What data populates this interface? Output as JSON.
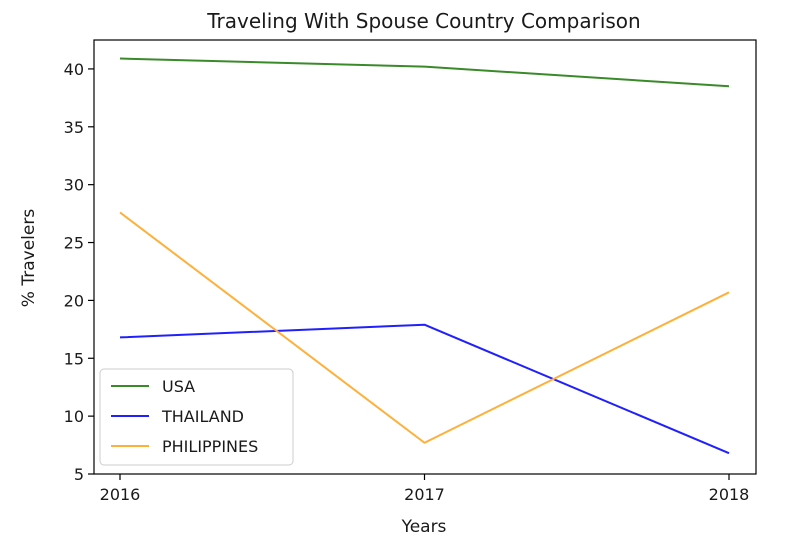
{
  "chart_data": {
    "type": "line",
    "title": "Traveling With Spouse Country Comparison",
    "xlabel": "Years",
    "ylabel": "% Travelers",
    "x": [
      "2016",
      "2017",
      "2018"
    ],
    "ylim": [
      5,
      42.5
    ],
    "yticks": [
      5,
      10,
      15,
      20,
      25,
      30,
      35,
      40
    ],
    "legend_position": "lower-left",
    "grid": false,
    "series": [
      {
        "name": "USA",
        "color": "#3a8a2a",
        "values": [
          40.9,
          40.2,
          38.5
        ]
      },
      {
        "name": "THAILAND",
        "color": "#2020ff",
        "values": [
          16.8,
          17.9,
          6.8
        ]
      },
      {
        "name": "PHILIPPINES",
        "color": "#ffb03b",
        "values": [
          27.6,
          7.7,
          20.7
        ]
      }
    ]
  }
}
